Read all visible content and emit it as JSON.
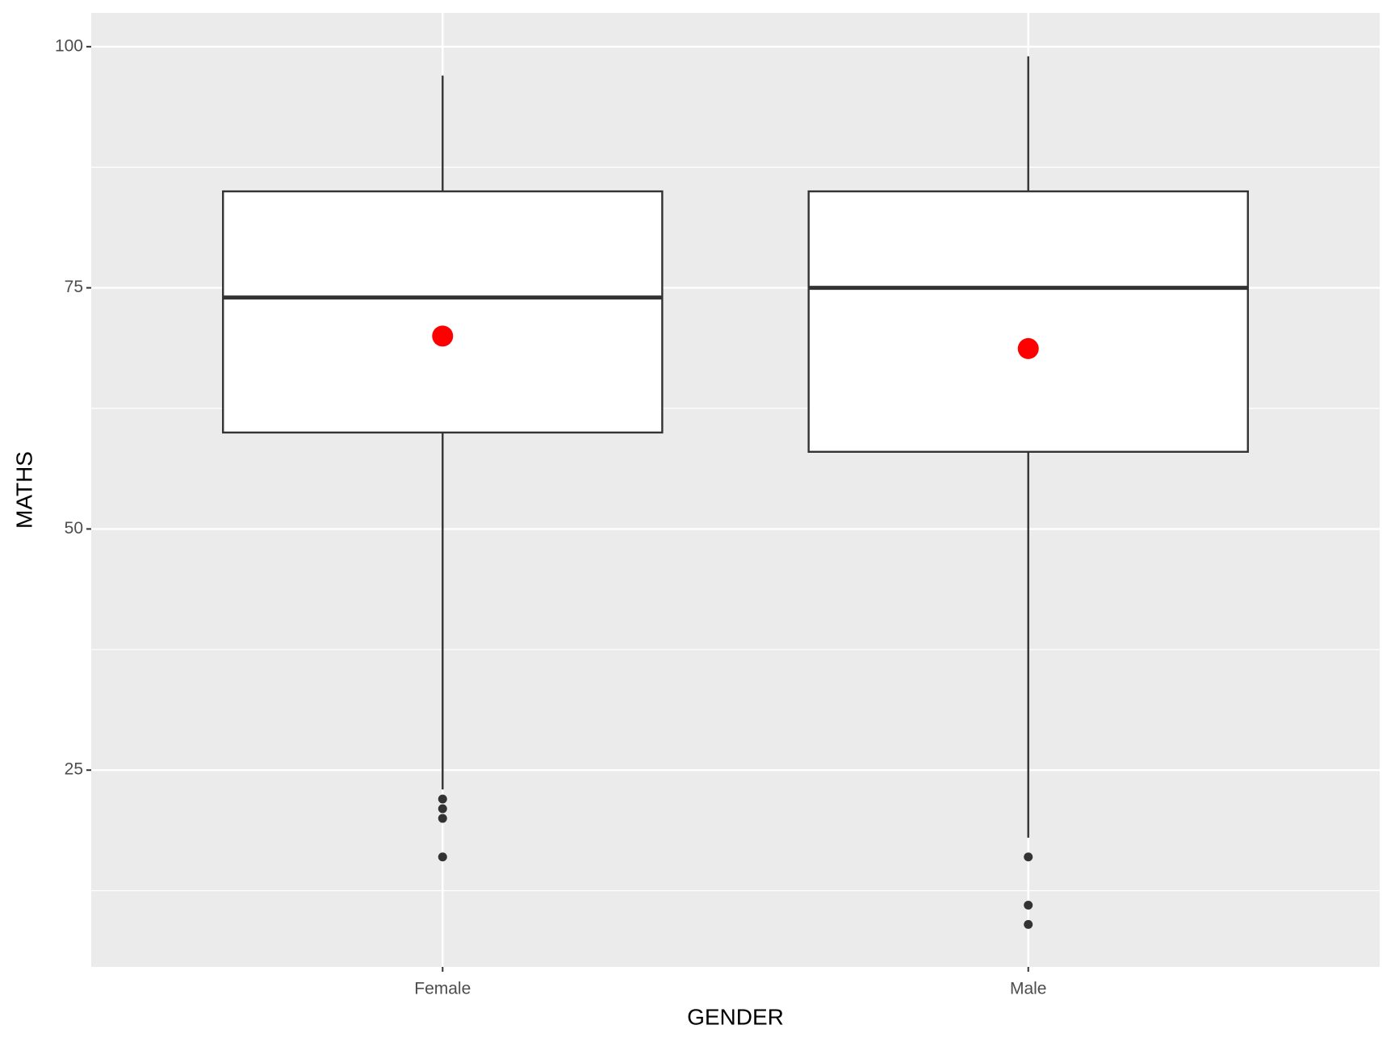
{
  "chart_data": {
    "type": "box",
    "x_label": "GENDER",
    "y_label": "MATHS",
    "categories": [
      "Female",
      "Male"
    ],
    "boxes": [
      {
        "low": 23,
        "q1": 60,
        "median": 74,
        "q3": 85,
        "high": 97,
        "mean": 70,
        "outliers": [
          22,
          21,
          20,
          16
        ]
      },
      {
        "low": 18,
        "q1": 58,
        "median": 75,
        "q3": 85,
        "high": 99,
        "mean": 68.7,
        "outliers": [
          16,
          11,
          9
        ]
      }
    ],
    "box_fill": "#ffffff",
    "box_stroke": "#333333",
    "mean_color": "#ff0000",
    "outlier_color": "#333333",
    "ylim": [
      4.6,
      103.5
    ],
    "yticks": [
      25,
      50,
      75,
      100
    ],
    "minor_yticks": [
      12.5,
      37.5,
      62.5,
      87.5
    ],
    "grid": true
  }
}
